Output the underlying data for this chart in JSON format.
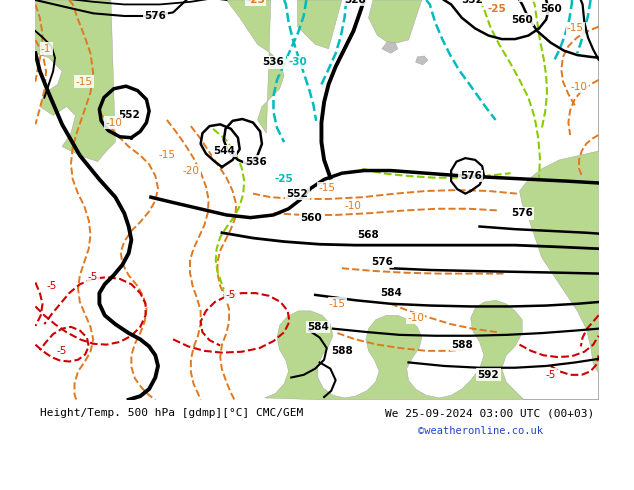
{
  "title_left": "Height/Temp. 500 hPa [gdmp][°C] CMC/GEM",
  "title_right": "We 25-09-2024 03:00 UTC (00+03)",
  "credit": "©weatheronline.co.uk",
  "bg_land_green": "#b8d890",
  "bg_sea_gray": "#c8c8c8",
  "bg_light_gray": "#d8d8d8",
  "fig_width": 6.34,
  "fig_height": 4.9,
  "dpi": 100
}
